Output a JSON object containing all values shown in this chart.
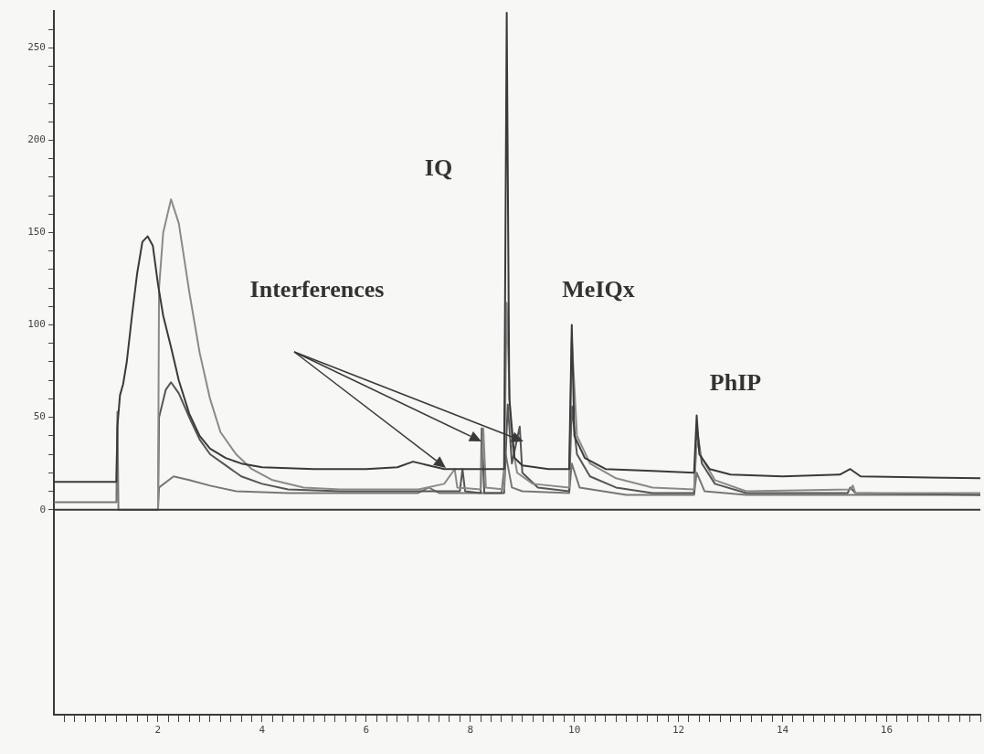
{
  "chart_data": {
    "type": "line",
    "xlim": [
      0,
      17.8
    ],
    "ylim": [
      -111,
      270
    ],
    "xticks": [
      {
        "value": 0.2,
        "label": null
      },
      {
        "value": 0.4,
        "label": null
      },
      {
        "value": 0.6,
        "label": null
      },
      {
        "value": 0.8,
        "label": null
      },
      {
        "value": 1,
        "label": null
      },
      {
        "value": 1.2,
        "label": null
      },
      {
        "value": 1.4,
        "label": null
      },
      {
        "value": 1.6,
        "label": null
      },
      {
        "value": 1.8,
        "label": null
      },
      2,
      {
        "value": 2.2,
        "label": null
      },
      {
        "value": 2.4,
        "label": null
      },
      {
        "value": 2.6,
        "label": null
      },
      {
        "value": 2.8,
        "label": null
      },
      {
        "value": 3,
        "label": null
      },
      {
        "value": 3.2,
        "label": null
      },
      {
        "value": 3.4,
        "label": null
      },
      {
        "value": 3.6,
        "label": null
      },
      {
        "value": 3.8,
        "label": null
      },
      4,
      {
        "value": 4.2,
        "label": null
      },
      {
        "value": 4.4,
        "label": null
      },
      {
        "value": 4.6,
        "label": null
      },
      {
        "value": 4.8,
        "label": null
      },
      {
        "value": 5,
        "label": null
      },
      {
        "value": 5.2,
        "label": null
      },
      {
        "value": 5.4,
        "label": null
      },
      {
        "value": 5.6,
        "label": null
      },
      {
        "value": 5.8,
        "label": null
      },
      6,
      {
        "value": 6.2,
        "label": null
      },
      {
        "value": 6.4,
        "label": null
      },
      {
        "value": 6.6,
        "label": null
      },
      {
        "value": 6.8,
        "label": null
      },
      {
        "value": 7,
        "label": null
      },
      {
        "value": 7.2,
        "label": null
      },
      {
        "value": 7.4,
        "label": null
      },
      {
        "value": 7.6,
        "label": null
      },
      {
        "value": 7.8,
        "label": null
      },
      8,
      {
        "value": 8.2,
        "label": null
      },
      {
        "value": 8.4,
        "label": null
      },
      {
        "value": 8.6,
        "label": null
      },
      {
        "value": 8.8,
        "label": null
      },
      {
        "value": 9,
        "label": null
      },
      {
        "value": 9.2,
        "label": null
      },
      {
        "value": 9.4,
        "label": null
      },
      {
        "value": 9.6,
        "label": null
      },
      {
        "value": 9.8,
        "label": null
      },
      10,
      {
        "value": 10.2,
        "label": null
      },
      {
        "value": 10.4,
        "label": null
      },
      {
        "value": 10.6,
        "label": null
      },
      {
        "value": 10.8,
        "label": null
      },
      {
        "value": 11,
        "label": null
      },
      {
        "value": 11.2,
        "label": null
      },
      {
        "value": 11.4,
        "label": null
      },
      {
        "value": 11.6,
        "label": null
      },
      {
        "value": 11.8,
        "label": null
      },
      12,
      {
        "value": 12.2,
        "label": null
      },
      {
        "value": 12.4,
        "label": null
      },
      {
        "value": 12.6,
        "label": null
      },
      {
        "value": 12.8,
        "label": null
      },
      {
        "value": 13,
        "label": null
      },
      {
        "value": 13.2,
        "label": null
      },
      {
        "value": 13.4,
        "label": null
      },
      {
        "value": 13.6,
        "label": null
      },
      {
        "value": 13.8,
        "label": null
      },
      14,
      {
        "value": 14.2,
        "label": null
      },
      {
        "value": 14.4,
        "label": null
      },
      {
        "value": 14.6,
        "label": null
      },
      {
        "value": 14.8,
        "label": null
      },
      {
        "value": 15,
        "label": null
      },
      {
        "value": 15.2,
        "label": null
      },
      {
        "value": 15.4,
        "label": null
      },
      {
        "value": 15.6,
        "label": null
      },
      {
        "value": 15.8,
        "label": null
      },
      16,
      {
        "value": 16.2,
        "label": null
      },
      {
        "value": 16.4,
        "label": null
      },
      {
        "value": 16.6,
        "label": null
      },
      {
        "value": 16.8,
        "label": null
      },
      {
        "value": 17,
        "label": null
      },
      {
        "value": 17.2,
        "label": null
      },
      {
        "value": 17.4,
        "label": null
      },
      {
        "value": 17.6,
        "label": null
      },
      {
        "value": 17.8,
        "label": null
      }
    ],
    "yticks": [
      0,
      {
        "value": 10,
        "label": null
      },
      {
        "value": 20,
        "label": null
      },
      {
        "value": 30,
        "label": null
      },
      {
        "value": 40,
        "label": null
      },
      50,
      {
        "value": 60,
        "label": null
      },
      {
        "value": 70,
        "label": null
      },
      {
        "value": 80,
        "label": null
      },
      {
        "value": 90,
        "label": null
      },
      100,
      {
        "value": 110,
        "label": null
      },
      {
        "value": 120,
        "label": null
      },
      {
        "value": 130,
        "label": null
      },
      {
        "value": 140,
        "label": null
      },
      150,
      {
        "value": 160,
        "label": null
      },
      {
        "value": 170,
        "label": null
      },
      {
        "value": 180,
        "label": null
      },
      {
        "value": 190,
        "label": null
      },
      200,
      {
        "value": 210,
        "label": null
      },
      {
        "value": 220,
        "label": null
      },
      {
        "value": 230,
        "label": null
      },
      {
        "value": 240,
        "label": null
      },
      250,
      {
        "value": 260,
        "label": null
      }
    ],
    "grid": false,
    "legend": false,
    "ref_lines": [
      {
        "axis": "y",
        "value": 0,
        "color": "#3a3a3a"
      }
    ],
    "annotations": [
      "Interferences",
      "IQ",
      "MeIQx",
      "PhIP"
    ],
    "series": [
      {
        "color": "#3a3a3a",
        "x": [
          0,
          1.2,
          1.22,
          1.27,
          1.33,
          1.4,
          1.5,
          1.6,
          1.7,
          1.8,
          1.9,
          2.0,
          2.1,
          2.25,
          2.4,
          2.6,
          2.8,
          3.0,
          3.3,
          3.6,
          4.0,
          5.0,
          6.0,
          6.6,
          6.9,
          7.2,
          7.5,
          8.0,
          8.65,
          8.7,
          8.75,
          8.85,
          9.0,
          9.5,
          9.9,
          9.95,
          10.0,
          10.2,
          10.6,
          11.5,
          12.3,
          12.35,
          12.4,
          12.6,
          13,
          14,
          15.1,
          15.3,
          15.5,
          17.8
        ],
        "values": [
          15,
          15,
          45,
          62,
          68,
          80,
          105,
          128,
          145,
          148,
          143,
          122,
          105,
          88,
          70,
          52,
          40,
          33,
          28,
          25,
          23,
          22,
          22,
          23,
          26,
          24,
          22,
          22,
          22,
          269,
          60,
          28,
          24,
          22,
          22,
          100,
          40,
          28,
          22,
          21,
          20,
          51,
          30,
          22,
          19,
          18,
          19,
          22,
          18,
          17
        ]
      },
      {
        "color": "#8a8a8a",
        "x": [
          2.0,
          2.02,
          2.1,
          2.25,
          2.4,
          2.6,
          2.8,
          3.0,
          3.2,
          3.5,
          3.8,
          4.2,
          4.8,
          5.5,
          7.0,
          7.5,
          7.7,
          7.75,
          8.2,
          8.25,
          8.3,
          8.65,
          8.7,
          8.78,
          8.9,
          9.2,
          9.9,
          9.95,
          10.05,
          10.3,
          10.8,
          11.5,
          12.3,
          12.35,
          12.45,
          12.7,
          13.3,
          15.3,
          15.35,
          15.4,
          17.8
        ],
        "values": [
          0,
          120,
          150,
          168,
          155,
          118,
          85,
          60,
          42,
          30,
          22,
          16,
          12,
          11,
          11,
          14,
          22,
          12,
          11,
          44,
          12,
          11,
          112,
          40,
          20,
          14,
          12,
          93,
          40,
          25,
          17,
          12,
          11,
          37,
          28,
          16,
          10,
          11,
          13,
          9,
          9
        ]
      },
      {
        "color": "#555555",
        "x": [
          2.0,
          2.02,
          2.15,
          2.25,
          2.4,
          2.6,
          2.8,
          3.0,
          3.3,
          3.6,
          4.0,
          4.5,
          5.5,
          7.0,
          7.8,
          7.85,
          7.9,
          8.2,
          8.22,
          8.27,
          8.65,
          8.72,
          8.8,
          8.95,
          9.0,
          9.3,
          9.9,
          9.95,
          10.05,
          10.3,
          10.8,
          11.5,
          12.3,
          12.35,
          12.45,
          12.7,
          13.3,
          15.25,
          15.3,
          15.4,
          17.8
        ],
        "values": [
          0,
          50,
          65,
          69,
          63,
          50,
          38,
          30,
          24,
          18,
          14,
          11,
          10,
          10,
          10,
          22,
          10,
          9,
          44,
          9,
          9,
          57,
          25,
          45,
          20,
          12,
          10,
          56,
          30,
          18,
          12,
          9,
          9,
          45,
          25,
          14,
          9,
          9,
          12,
          9,
          8
        ]
      },
      {
        "color": "#777777",
        "x": [
          0,
          1.2,
          1.22,
          1.24,
          2.0,
          2.02,
          2.3,
          2.6,
          3.0,
          3.5,
          4.5,
          6.0,
          7.0,
          7.2,
          7.4,
          8.6,
          8.68,
          8.8,
          9.0,
          9.9,
          9.95,
          10.1,
          11,
          12.3,
          12.35,
          12.5,
          13.3,
          17.8
        ],
        "values": [
          4,
          4,
          53,
          0,
          0,
          12,
          18,
          16,
          13,
          10,
          9,
          9,
          9,
          12,
          9,
          9,
          30,
          12,
          10,
          9,
          25,
          12,
          8,
          8,
          20,
          10,
          8,
          8
        ]
      }
    ]
  }
}
